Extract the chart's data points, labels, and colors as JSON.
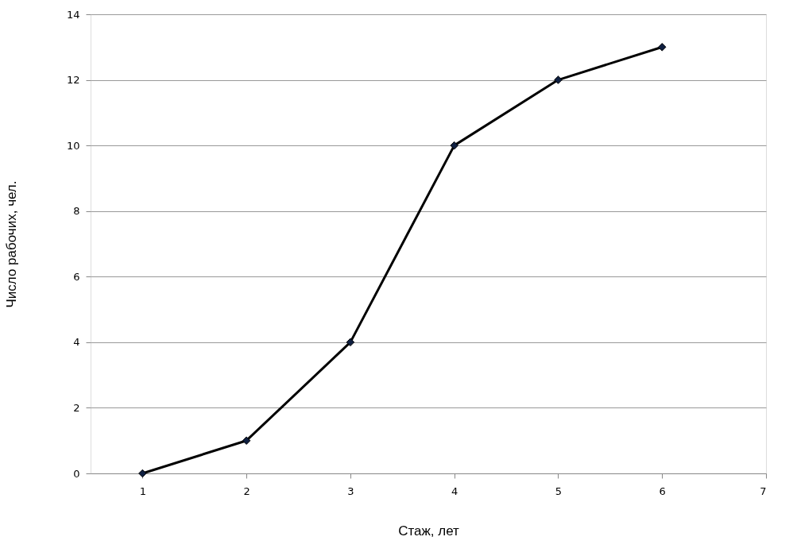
{
  "chart_data": {
    "type": "line",
    "xlabel": "Стаж, лет",
    "ylabel": "Число рабочих, чел.",
    "x": [
      1,
      2,
      3,
      4,
      5,
      6
    ],
    "series": [
      {
        "color": "#000000",
        "values": [
          0,
          1,
          4,
          10,
          12,
          13
        ]
      }
    ],
    "xlim": [
      0.5,
      7
    ],
    "xticks": [
      1,
      2,
      3,
      4,
      5,
      6,
      7
    ],
    "ylim": [
      0,
      14
    ],
    "yticks": [
      0,
      2,
      4,
      6,
      8,
      10,
      12,
      14
    ],
    "grid": "y",
    "marker": "diamond",
    "line_style": "solid"
  }
}
